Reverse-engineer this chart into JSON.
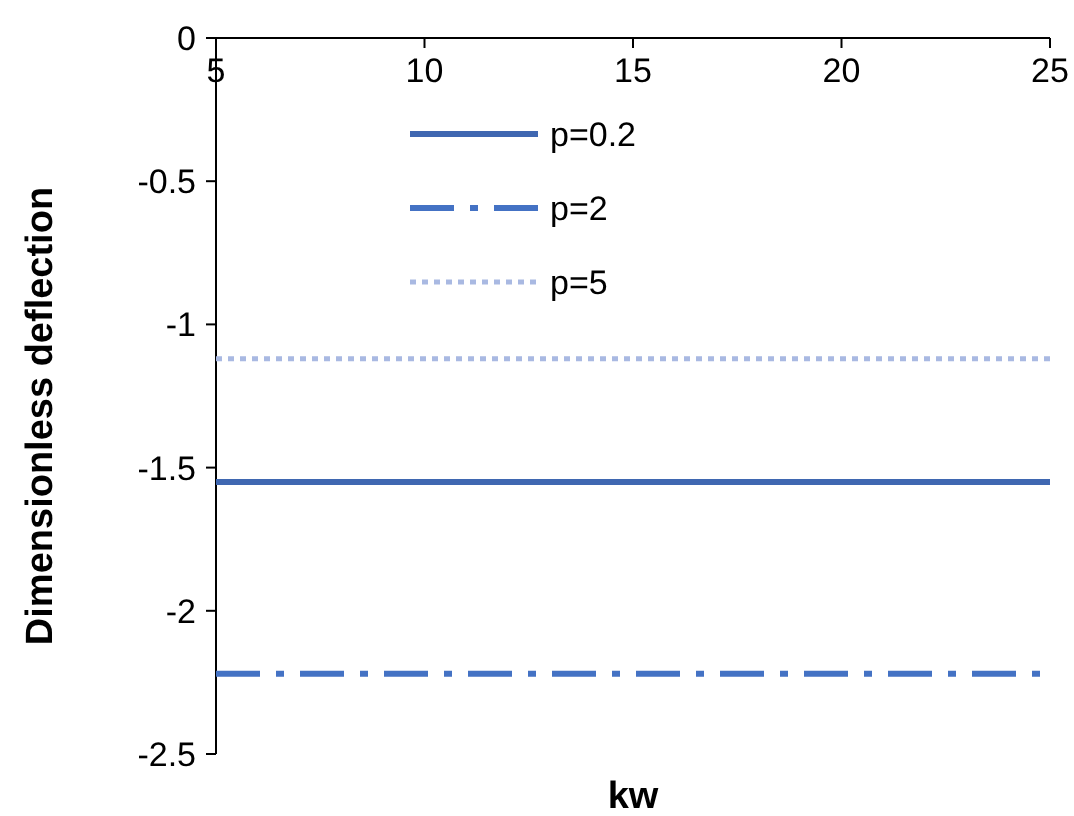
{
  "chart_data": {
    "type": "line",
    "xlabel": "kw",
    "ylabel": "Dimensionless deflection",
    "x": [
      5,
      25
    ],
    "series": [
      {
        "name": "p=0.2",
        "color": "#3f67b1",
        "values": [
          -1.55,
          -1.55
        ],
        "line_style": "solid"
      },
      {
        "name": "p=2",
        "color": "#4472c4",
        "values": [
          -2.22,
          -2.22
        ],
        "line_style": "dashed"
      },
      {
        "name": "p=5",
        "color": "#a9b9e2",
        "values": [
          -1.12,
          -1.12
        ],
        "line_style": "dotted"
      }
    ],
    "xlim": [
      5,
      25
    ],
    "xticks": [
      5,
      10,
      15,
      20,
      25
    ],
    "ylim": [
      -2.5,
      0
    ],
    "yticks": [
      -2.5,
      -2,
      -1.5,
      -1,
      -0.5,
      0
    ],
    "grid": false,
    "legend": "top",
    "marker": "none"
  }
}
